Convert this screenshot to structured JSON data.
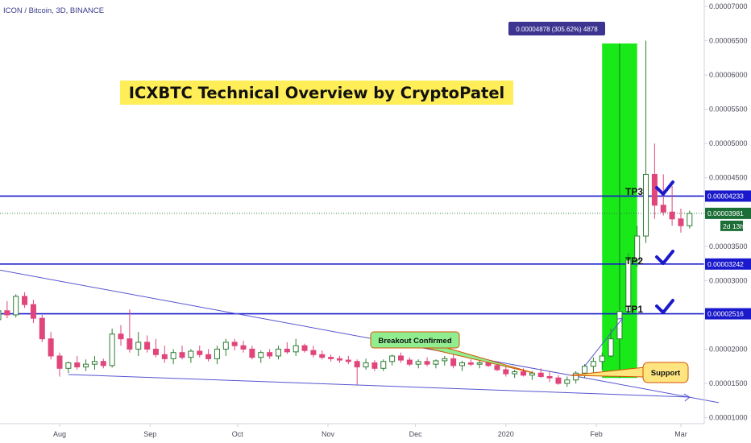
{
  "header": {
    "symbol": "ICON / Bitcoin, 3D, BINANCE"
  },
  "colors": {
    "up_body": "#ffffff",
    "up_border": "#2e7d32",
    "down_body": "#e0457b",
    "level_line": "#1a1acc",
    "trend_line": "#5555d0",
    "green_zone": "#00e600",
    "title_bg": "#ffee58",
    "callout_bg": "#90ee90",
    "support_bg": "#ffe57f",
    "measure_bg": "#3c3490",
    "check": "#1a1acc"
  },
  "chart_data": {
    "type": "candlestick",
    "title": "ICXBTC Technical Overview by CryptoPatel",
    "xlabel": "",
    "ylabel": "",
    "ylim": [
      9.6e-06,
      7.2e-05
    ],
    "y_ticks": [
      "0.00001000",
      "0.00001500",
      "0.00002000",
      "0.00003000",
      "0.00003500",
      "0.00004500",
      "0.00005000",
      "0.00005500",
      "0.00006000",
      "0.00006500",
      "0.00007000"
    ],
    "x_ticks": [
      "Aug",
      "Sep",
      "Oct",
      "Nov",
      "Dec",
      "2020",
      "Feb",
      "Mar"
    ],
    "x_start": "2019-07-05",
    "x_end": "2020-03-15",
    "candles": [
      {
        "d": "2019-07-05",
        "o": 2.62e-05,
        "h": 2.7e-05,
        "l": 2.44e-05,
        "c": 2.6e-05
      },
      {
        "d": "2019-07-08",
        "o": 2.6e-05,
        "h": 2.75e-05,
        "l": 2.4e-05,
        "c": 2.43e-05
      },
      {
        "d": "2019-07-11",
        "o": 2.43e-05,
        "h": 2.62e-05,
        "l": 2.38e-05,
        "c": 2.56e-05
      },
      {
        "d": "2019-07-14",
        "o": 2.56e-05,
        "h": 2.7e-05,
        "l": 2.45e-05,
        "c": 2.5e-05
      },
      {
        "d": "2019-07-17",
        "o": 2.5e-05,
        "h": 2.8e-05,
        "l": 2.46e-05,
        "c": 2.77e-05
      },
      {
        "d": "2019-07-20",
        "o": 2.77e-05,
        "h": 2.83e-05,
        "l": 2.6e-05,
        "c": 2.65e-05
      },
      {
        "d": "2019-07-23",
        "o": 2.65e-05,
        "h": 2.72e-05,
        "l": 2.38e-05,
        "c": 2.45e-05
      },
      {
        "d": "2019-07-26",
        "o": 2.45e-05,
        "h": 2.5e-05,
        "l": 2.1e-05,
        "c": 2.15e-05
      },
      {
        "d": "2019-07-29",
        "o": 2.15e-05,
        "h": 2.25e-05,
        "l": 1.85e-05,
        "c": 1.9e-05
      },
      {
        "d": "2019-08-01",
        "o": 1.9e-05,
        "h": 1.95e-05,
        "l": 1.6e-05,
        "c": 1.72e-05
      },
      {
        "d": "2019-08-04",
        "o": 1.72e-05,
        "h": 1.82e-05,
        "l": 1.65e-05,
        "c": 1.8e-05
      },
      {
        "d": "2019-08-07",
        "o": 1.8e-05,
        "h": 1.9e-05,
        "l": 1.7e-05,
        "c": 1.74e-05
      },
      {
        "d": "2019-08-10",
        "o": 1.74e-05,
        "h": 1.85e-05,
        "l": 1.68e-05,
        "c": 1.78e-05
      },
      {
        "d": "2019-08-13",
        "o": 1.78e-05,
        "h": 1.9e-05,
        "l": 1.7e-05,
        "c": 1.82e-05
      },
      {
        "d": "2019-08-16",
        "o": 1.82e-05,
        "h": 1.86e-05,
        "l": 1.72e-05,
        "c": 1.76e-05
      },
      {
        "d": "2019-08-19",
        "o": 1.76e-05,
        "h": 2.3e-05,
        "l": 1.73e-05,
        "c": 2.22e-05
      },
      {
        "d": "2019-08-22",
        "o": 2.22e-05,
        "h": 2.35e-05,
        "l": 2.05e-05,
        "c": 2.15e-05
      },
      {
        "d": "2019-08-25",
        "o": 2.15e-05,
        "h": 2.58e-05,
        "l": 1.95e-05,
        "c": 2e-05
      },
      {
        "d": "2019-08-28",
        "o": 2e-05,
        "h": 2.25e-05,
        "l": 1.9e-05,
        "c": 2.1e-05
      },
      {
        "d": "2019-08-31",
        "o": 2.1e-05,
        "h": 2.2e-05,
        "l": 1.95e-05,
        "c": 2e-05
      },
      {
        "d": "2019-09-03",
        "o": 2e-05,
        "h": 2.15e-05,
        "l": 1.88e-05,
        "c": 1.92e-05
      },
      {
        "d": "2019-09-06",
        "o": 1.92e-05,
        "h": 2.05e-05,
        "l": 1.8e-05,
        "c": 1.86e-05
      },
      {
        "d": "2019-09-09",
        "o": 1.86e-05,
        "h": 2e-05,
        "l": 1.78e-05,
        "c": 1.95e-05
      },
      {
        "d": "2019-09-12",
        "o": 1.95e-05,
        "h": 2.05e-05,
        "l": 1.85e-05,
        "c": 1.88e-05
      },
      {
        "d": "2019-09-15",
        "o": 1.88e-05,
        "h": 2e-05,
        "l": 1.8e-05,
        "c": 1.97e-05
      },
      {
        "d": "2019-09-18",
        "o": 1.97e-05,
        "h": 2.05e-05,
        "l": 1.88e-05,
        "c": 1.92e-05
      },
      {
        "d": "2019-09-21",
        "o": 1.92e-05,
        "h": 2e-05,
        "l": 1.82e-05,
        "c": 1.86e-05
      },
      {
        "d": "2019-09-24",
        "o": 1.86e-05,
        "h": 2.05e-05,
        "l": 1.78e-05,
        "c": 2e-05
      },
      {
        "d": "2019-09-27",
        "o": 2e-05,
        "h": 2.15e-05,
        "l": 1.9e-05,
        "c": 2.1e-05
      },
      {
        "d": "2019-09-30",
        "o": 2.1e-05,
        "h": 2.15e-05,
        "l": 1.98e-05,
        "c": 2.05e-05
      },
      {
        "d": "2019-10-03",
        "o": 2.05e-05,
        "h": 2.12e-05,
        "l": 1.95e-05,
        "c": 2e-05
      },
      {
        "d": "2019-10-06",
        "o": 2e-05,
        "h": 2.05e-05,
        "l": 1.85e-05,
        "c": 1.88e-05
      },
      {
        "d": "2019-10-09",
        "o": 1.88e-05,
        "h": 1.98e-05,
        "l": 1.8e-05,
        "c": 1.95e-05
      },
      {
        "d": "2019-10-12",
        "o": 1.95e-05,
        "h": 2e-05,
        "l": 1.86e-05,
        "c": 1.9e-05
      },
      {
        "d": "2019-10-15",
        "o": 1.9e-05,
        "h": 2.05e-05,
        "l": 1.85e-05,
        "c": 2e-05
      },
      {
        "d": "2019-10-18",
        "o": 2e-05,
        "h": 2.1e-05,
        "l": 1.93e-05,
        "c": 1.96e-05
      },
      {
        "d": "2019-10-21",
        "o": 1.96e-05,
        "h": 2.15e-05,
        "l": 1.9e-05,
        "c": 2.05e-05
      },
      {
        "d": "2019-10-24",
        "o": 2.05e-05,
        "h": 2.08e-05,
        "l": 1.95e-05,
        "c": 1.98e-05
      },
      {
        "d": "2019-10-27",
        "o": 1.98e-05,
        "h": 2.05e-05,
        "l": 1.88e-05,
        "c": 1.92e-05
      },
      {
        "d": "2019-10-30",
        "o": 1.92e-05,
        "h": 1.98e-05,
        "l": 1.85e-05,
        "c": 1.88e-05
      },
      {
        "d": "2019-11-02",
        "o": 1.88e-05,
        "h": 1.92e-05,
        "l": 1.82e-05,
        "c": 1.86e-05
      },
      {
        "d": "2019-11-05",
        "o": 1.86e-05,
        "h": 1.9e-05,
        "l": 1.8e-05,
        "c": 1.84e-05
      },
      {
        "d": "2019-11-08",
        "o": 1.84e-05,
        "h": 1.9e-05,
        "l": 1.78e-05,
        "c": 1.82e-05
      },
      {
        "d": "2019-11-11",
        "o": 1.82e-05,
        "h": 1.85e-05,
        "l": 1.48e-05,
        "c": 1.74e-05
      },
      {
        "d": "2019-11-14",
        "o": 1.74e-05,
        "h": 1.86e-05,
        "l": 1.7e-05,
        "c": 1.8e-05
      },
      {
        "d": "2019-11-17",
        "o": 1.8e-05,
        "h": 1.84e-05,
        "l": 1.68e-05,
        "c": 1.72e-05
      },
      {
        "d": "2019-11-20",
        "o": 1.72e-05,
        "h": 1.85e-05,
        "l": 1.68e-05,
        "c": 1.82e-05
      },
      {
        "d": "2019-11-23",
        "o": 1.82e-05,
        "h": 1.92e-05,
        "l": 1.76e-05,
        "c": 1.9e-05
      },
      {
        "d": "2019-11-26",
        "o": 1.9e-05,
        "h": 1.95e-05,
        "l": 1.8e-05,
        "c": 1.84e-05
      },
      {
        "d": "2019-11-29",
        "o": 1.84e-05,
        "h": 1.88e-05,
        "l": 1.75e-05,
        "c": 1.78e-05
      },
      {
        "d": "2019-12-02",
        "o": 1.78e-05,
        "h": 1.85e-05,
        "l": 1.72e-05,
        "c": 1.82e-05
      },
      {
        "d": "2019-12-05",
        "o": 1.82e-05,
        "h": 1.88e-05,
        "l": 1.75e-05,
        "c": 1.78e-05
      },
      {
        "d": "2019-12-08",
        "o": 1.78e-05,
        "h": 1.85e-05,
        "l": 1.72e-05,
        "c": 1.83e-05
      },
      {
        "d": "2019-12-11",
        "o": 1.83e-05,
        "h": 1.9e-05,
        "l": 1.76e-05,
        "c": 1.86e-05
      },
      {
        "d": "2019-12-14",
        "o": 1.86e-05,
        "h": 1.92e-05,
        "l": 1.72e-05,
        "c": 1.76e-05
      },
      {
        "d": "2019-12-17",
        "o": 1.76e-05,
        "h": 1.83e-05,
        "l": 1.68e-05,
        "c": 1.8e-05
      },
      {
        "d": "2019-12-20",
        "o": 1.8e-05,
        "h": 1.85e-05,
        "l": 1.75e-05,
        "c": 1.78e-05
      },
      {
        "d": "2019-12-23",
        "o": 1.78e-05,
        "h": 1.83e-05,
        "l": 1.72e-05,
        "c": 1.8e-05
      },
      {
        "d": "2019-12-26",
        "o": 1.8e-05,
        "h": 1.85e-05,
        "l": 1.74e-05,
        "c": 1.76e-05
      },
      {
        "d": "2019-12-29",
        "o": 1.76e-05,
        "h": 1.8e-05,
        "l": 1.68e-05,
        "c": 1.7e-05
      },
      {
        "d": "2020-01-01",
        "o": 1.7e-05,
        "h": 1.75e-05,
        "l": 1.6e-05,
        "c": 1.64e-05
      },
      {
        "d": "2020-01-04",
        "o": 1.64e-05,
        "h": 1.7e-05,
        "l": 1.58e-05,
        "c": 1.67e-05
      },
      {
        "d": "2020-01-07",
        "o": 1.67e-05,
        "h": 1.72e-05,
        "l": 1.6e-05,
        "c": 1.62e-05
      },
      {
        "d": "2020-01-10",
        "o": 1.62e-05,
        "h": 1.68e-05,
        "l": 1.55e-05,
        "c": 1.65e-05
      },
      {
        "d": "2020-01-13",
        "o": 1.65e-05,
        "h": 1.72e-05,
        "l": 1.58e-05,
        "c": 1.6e-05
      },
      {
        "d": "2020-01-16",
        "o": 1.6e-05,
        "h": 1.68e-05,
        "l": 1.52e-05,
        "c": 1.58e-05
      },
      {
        "d": "2020-01-19",
        "o": 1.58e-05,
        "h": 1.62e-05,
        "l": 1.48e-05,
        "c": 1.5e-05
      },
      {
        "d": "2020-01-22",
        "o": 1.5e-05,
        "h": 1.6e-05,
        "l": 1.45e-05,
        "c": 1.55e-05
      },
      {
        "d": "2020-01-25",
        "o": 1.55e-05,
        "h": 1.68e-05,
        "l": 1.5e-05,
        "c": 1.65e-05
      },
      {
        "d": "2020-01-28",
        "o": 1.65e-05,
        "h": 1.78e-05,
        "l": 1.58e-05,
        "c": 1.75e-05
      },
      {
        "d": "2020-01-31",
        "o": 1.75e-05,
        "h": 1.88e-05,
        "l": 1.65e-05,
        "c": 1.82e-05
      },
      {
        "d": "2020-02-03",
        "o": 1.82e-05,
        "h": 1.95e-05,
        "l": 1.7e-05,
        "c": 1.9e-05
      },
      {
        "d": "2020-02-06",
        "o": 1.9e-05,
        "h": 2.3e-05,
        "l": 1.88e-05,
        "c": 2.15e-05
      },
      {
        "d": "2020-02-09",
        "o": 2.15e-05,
        "h": 2.62e-05,
        "l": 2.1e-05,
        "c": 2.55e-05
      },
      {
        "d": "2020-02-12",
        "o": 2.55e-05,
        "h": 3.4e-05,
        "l": 2.5e-05,
        "c": 3.3e-05
      },
      {
        "d": "2020-02-15",
        "o": 3.3e-05,
        "h": 3.8e-05,
        "l": 3.2e-05,
        "c": 3.65e-05
      },
      {
        "d": "2020-02-18",
        "o": 3.65e-05,
        "h": 6.5e-05,
        "l": 3.55e-05,
        "c": 4.55e-05
      },
      {
        "d": "2020-02-21",
        "o": 4.55e-05,
        "h": 5e-05,
        "l": 3.9e-05,
        "c": 4.1e-05
      },
      {
        "d": "2020-02-24",
        "o": 4.1e-05,
        "h": 4.55e-05,
        "l": 3.95e-05,
        "c": 4e-05
      },
      {
        "d": "2020-02-27",
        "o": 4e-05,
        "h": 4.38e-05,
        "l": 3.8e-05,
        "c": 3.9e-05
      },
      {
        "d": "2020-03-01",
        "o": 3.9e-05,
        "h": 4.05e-05,
        "l": 3.7e-05,
        "c": 3.8e-05
      },
      {
        "d": "2020-03-04",
        "o": 3.8e-05,
        "h": 4.02e-05,
        "l": 3.76e-05,
        "c": 3.98e-05
      }
    ],
    "levels": [
      {
        "name": "TP3",
        "price": 4.233e-05,
        "label": "0.00004233"
      },
      {
        "name": "TP2",
        "price": 3.242e-05,
        "label": "0.00003242"
      },
      {
        "name": "TP1",
        "price": 2.516e-05,
        "label": "0.00002516"
      }
    ],
    "current_price": {
      "price": 3.981e-05,
      "label": "0.00003981",
      "countdown": "2d 13h"
    },
    "annotations": {
      "title": "ICXBTC Technical Overview by CryptoPatel",
      "breakout": "Breakout Confirmed",
      "support": "Support",
      "measure": "0.00004878 (305.62%) 4878",
      "tp1": "TP1",
      "tp2": "TP2",
      "tp3": "TP3"
    },
    "trendlines": [
      {
        "from": {
          "d": "2019-06-10",
          "p": 3.4e-05
        },
        "to": {
          "d": "2020-03-14",
          "p": 1.22e-05
        }
      },
      {
        "from": {
          "d": "2019-08-04",
          "p": 1.63e-05
        },
        "to": {
          "d": "2020-03-04",
          "p": 1.3e-05
        }
      }
    ],
    "measure_zone": {
      "from": {
        "d": "2020-02-03",
        "p": 1.58e-05
      },
      "to": {
        "d": "2020-02-15",
        "p": 6.46e-05
      }
    }
  }
}
